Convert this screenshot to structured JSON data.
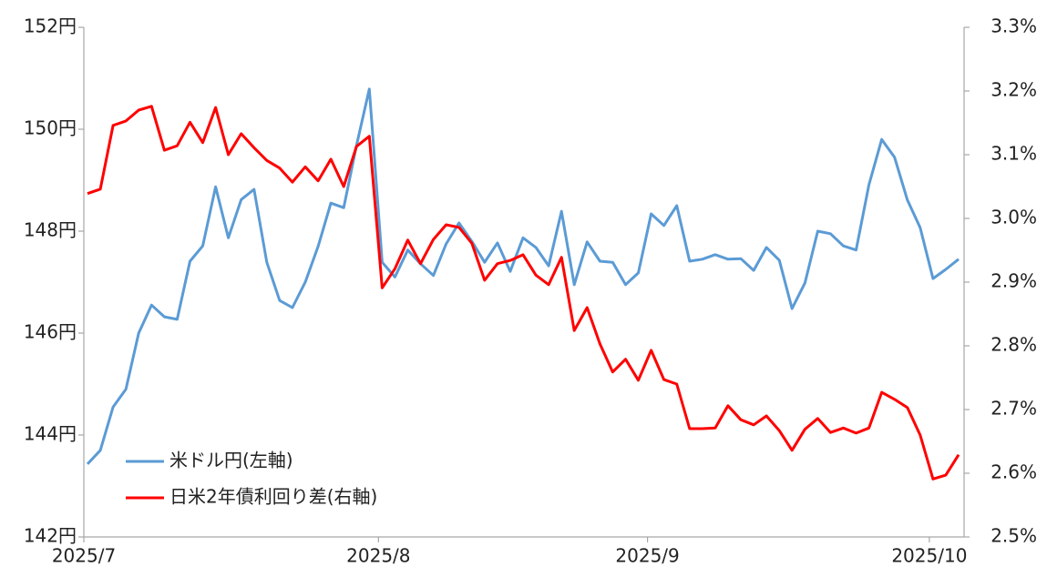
{
  "chart_data": {
    "type": "line",
    "categories": [
      "2025/7",
      null,
      null,
      null,
      null,
      null,
      null,
      null,
      null,
      null,
      null,
      null,
      null,
      null,
      null,
      null,
      null,
      null,
      null,
      null,
      null,
      null,
      null,
      "2025/8",
      null,
      null,
      null,
      null,
      null,
      null,
      null,
      null,
      null,
      null,
      null,
      null,
      null,
      null,
      null,
      null,
      null,
      null,
      null,
      null,
      "2025/9",
      null,
      null,
      null,
      null,
      null,
      null,
      null,
      null,
      null,
      null,
      null,
      null,
      null,
      null,
      null,
      null,
      null,
      null,
      null,
      null,
      null,
      "2025/10",
      null,
      null
    ],
    "series": [
      {
        "name": "米ドル円(左軸)",
        "color": "#5b9bd5",
        "axis": "y",
        "values": [
          143.43,
          143.7,
          144.55,
          144.9,
          146.0,
          146.55,
          146.32,
          146.27,
          147.41,
          147.71,
          148.87,
          147.87,
          148.62,
          148.82,
          147.39,
          146.64,
          146.5,
          147.0,
          147.7,
          148.55,
          148.46,
          149.68,
          150.79,
          147.39,
          147.1,
          147.63,
          147.36,
          147.13,
          147.75,
          148.16,
          147.8,
          147.39,
          147.77,
          147.21,
          147.87,
          147.68,
          147.32,
          148.39,
          146.95,
          147.79,
          147.41,
          147.39,
          146.95,
          147.18,
          148.34,
          148.11,
          148.5,
          147.41,
          147.45,
          147.54,
          147.45,
          147.46,
          147.23,
          147.68,
          147.43,
          146.48,
          146.98,
          148.0,
          147.95,
          147.71,
          147.63,
          148.91,
          149.8,
          149.45,
          148.61,
          148.07,
          147.07,
          147.25,
          147.45
        ]
      },
      {
        "name": "日米2年債利回り差(右軸)",
        "color": "#ff0000",
        "axis": "y2",
        "values": [
          3.039,
          3.046,
          3.146,
          3.153,
          3.17,
          3.176,
          3.107,
          3.114,
          3.151,
          3.119,
          3.174,
          3.1,
          3.133,
          3.111,
          3.091,
          3.079,
          3.057,
          3.081,
          3.059,
          3.093,
          3.05,
          3.113,
          3.129,
          2.891,
          2.921,
          2.966,
          2.929,
          2.967,
          2.99,
          2.986,
          2.961,
          2.903,
          2.929,
          2.934,
          2.943,
          2.911,
          2.896,
          2.939,
          2.824,
          2.86,
          2.803,
          2.759,
          2.779,
          2.746,
          2.793,
          2.747,
          2.74,
          2.67,
          2.67,
          2.671,
          2.706,
          2.684,
          2.676,
          2.69,
          2.667,
          2.636,
          2.669,
          2.686,
          2.664,
          2.671,
          2.663,
          2.671,
          2.727,
          2.716,
          2.703,
          2.66,
          2.591,
          2.597,
          2.629
        ]
      }
    ],
    "ylim": [
      142,
      152
    ],
    "yticks": [
      {
        "value": 142,
        "label": "142円"
      },
      {
        "value": 144,
        "label": "144円"
      },
      {
        "value": 146,
        "label": "146円"
      },
      {
        "value": 148,
        "label": "148円"
      },
      {
        "value": 150,
        "label": "150円"
      },
      {
        "value": 152,
        "label": "152円"
      }
    ],
    "y2lim": [
      2.5,
      3.3
    ],
    "y2ticks": [
      {
        "value": 2.5,
        "label": "2.5%"
      },
      {
        "value": 2.6,
        "label": "2.6%"
      },
      {
        "value": 2.7,
        "label": "2.7%"
      },
      {
        "value": 2.8,
        "label": "2.8%"
      },
      {
        "value": 2.9,
        "label": "2.9%"
      },
      {
        "value": 3.0,
        "label": "3.0%"
      },
      {
        "value": 3.1,
        "label": "3.1%"
      },
      {
        "value": 3.2,
        "label": "3.2%"
      },
      {
        "value": 3.3,
        "label": "3.3%"
      }
    ],
    "grid": false,
    "legend": "lower left"
  }
}
